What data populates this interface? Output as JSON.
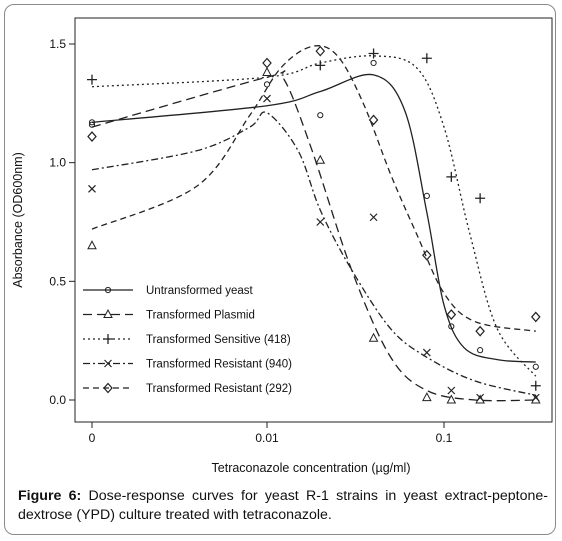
{
  "caption": {
    "label": "Figure 6:",
    "text": " Dose-response curves for yeast R-1 strains in yeast extract-peptone-dextrose (YPD) culture treated with tetraconazole."
  },
  "chart_data": {
    "type": "scatter",
    "xlabel": "Tetraconazole concentration (µg/ml)",
    "ylabel": "Absorbance (OD600nm)",
    "x_scale": "log (zero shown at origin)",
    "x_ticks": [
      {
        "value": 0,
        "label": "0"
      },
      {
        "value": 0.01,
        "label": "0.01"
      },
      {
        "value": 0.1,
        "label": "0.1"
      }
    ],
    "y_ticks": [
      {
        "value": 0.0,
        "label": "0.0"
      },
      {
        "value": 0.5,
        "label": "0.5"
      },
      {
        "value": 1.0,
        "label": "1.0"
      },
      {
        "value": 1.5,
        "label": "1.5"
      }
    ],
    "ylim": [
      0,
      1.5
    ],
    "grid": false,
    "legend_position": "bottom-left",
    "series": [
      {
        "name": "Untransformed yeast",
        "marker": "circle",
        "dash": "solid",
        "points": [
          [
            0,
            1.17
          ],
          [
            0,
            1.16
          ],
          [
            0.01,
            1.33
          ],
          [
            0.02,
            1.2
          ],
          [
            0.04,
            1.42
          ],
          [
            0.08,
            0.86
          ],
          [
            0.11,
            0.31
          ],
          [
            0.16,
            0.21
          ],
          [
            0.33,
            0.14
          ]
        ],
        "curve": [
          [
            0,
            1.17
          ],
          [
            0.01,
            1.24
          ],
          [
            0.02,
            1.3
          ],
          [
            0.04,
            1.37
          ],
          [
            0.06,
            1.22
          ],
          [
            0.08,
            0.79
          ],
          [
            0.1,
            0.4
          ],
          [
            0.13,
            0.22
          ],
          [
            0.2,
            0.17
          ],
          [
            0.33,
            0.16
          ]
        ]
      },
      {
        "name": "Transformed Plasmid",
        "marker": "triangle",
        "dash": "long-dash",
        "points": [
          [
            0,
            0.65
          ],
          [
            0.01,
            1.38
          ],
          [
            0.02,
            1.01
          ],
          [
            0.04,
            0.26
          ],
          [
            0.08,
            0.01
          ],
          [
            0.11,
            0.0
          ],
          [
            0.16,
            0.0
          ],
          [
            0.33,
            0.0
          ]
        ],
        "curve": [
          [
            0,
            1.15
          ],
          [
            0.01,
            1.36
          ],
          [
            0.0125,
            1.35
          ],
          [
            0.018,
            1.05
          ],
          [
            0.03,
            0.55
          ],
          [
            0.05,
            0.18
          ],
          [
            0.08,
            0.04
          ],
          [
            0.15,
            0.0
          ],
          [
            0.33,
            0.0
          ]
        ]
      },
      {
        "name": "Transformed Sensitive (418)",
        "marker": "plus",
        "dash": "dotted",
        "points": [
          [
            0,
            1.35
          ],
          [
            0.02,
            1.41
          ],
          [
            0.04,
            1.46
          ],
          [
            0.08,
            1.44
          ],
          [
            0.11,
            0.94
          ],
          [
            0.16,
            0.85
          ],
          [
            0.33,
            0.06
          ]
        ],
        "curve": [
          [
            0,
            1.32
          ],
          [
            0.01,
            1.36
          ],
          [
            0.02,
            1.42
          ],
          [
            0.04,
            1.45
          ],
          [
            0.07,
            1.4
          ],
          [
            0.1,
            1.15
          ],
          [
            0.14,
            0.7
          ],
          [
            0.2,
            0.3
          ],
          [
            0.33,
            0.1
          ]
        ]
      },
      {
        "name": "Transformed Resistant (940)",
        "marker": "cross",
        "dash": "dash-dot",
        "points": [
          [
            0,
            0.89
          ],
          [
            0.01,
            1.27
          ],
          [
            0.02,
            0.75
          ],
          [
            0.04,
            0.77
          ],
          [
            0.08,
            0.2
          ],
          [
            0.11,
            0.04
          ],
          [
            0.16,
            0.01
          ],
          [
            0.33,
            0.01
          ]
        ],
        "curve": [
          [
            0,
            0.97
          ],
          [
            0.004,
            1.05
          ],
          [
            0.008,
            1.15
          ],
          [
            0.01,
            1.21
          ],
          [
            0.015,
            1.05
          ],
          [
            0.02,
            0.8
          ],
          [
            0.03,
            0.55
          ],
          [
            0.05,
            0.3
          ],
          [
            0.08,
            0.18
          ],
          [
            0.15,
            0.08
          ],
          [
            0.33,
            0.02
          ]
        ]
      },
      {
        "name": "Transformed Resistant (292)",
        "marker": "diamond",
        "dash": "dashed",
        "points": [
          [
            0,
            1.11
          ],
          [
            0.01,
            1.42
          ],
          [
            0.02,
            1.47
          ],
          [
            0.04,
            1.18
          ],
          [
            0.08,
            0.61
          ],
          [
            0.11,
            0.36
          ],
          [
            0.16,
            0.29
          ],
          [
            0.33,
            0.35
          ]
        ],
        "curve": [
          [
            0,
            0.72
          ],
          [
            0.004,
            0.9
          ],
          [
            0.008,
            1.2
          ],
          [
            0.012,
            1.4
          ],
          [
            0.018,
            1.49
          ],
          [
            0.025,
            1.45
          ],
          [
            0.035,
            1.25
          ],
          [
            0.05,
            0.95
          ],
          [
            0.07,
            0.7
          ],
          [
            0.1,
            0.45
          ],
          [
            0.15,
            0.33
          ],
          [
            0.33,
            0.29
          ]
        ]
      }
    ]
  }
}
